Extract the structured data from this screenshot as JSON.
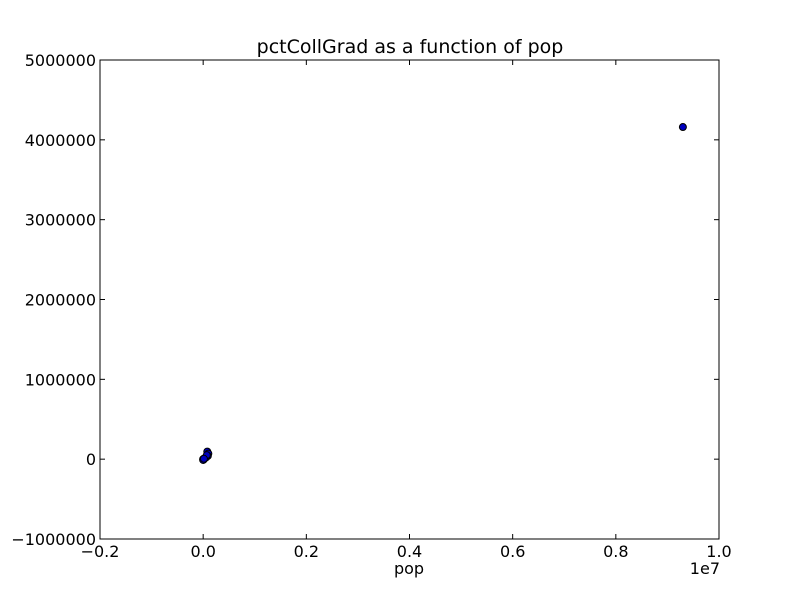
{
  "chart_data": {
    "type": "scatter",
    "title": "pctCollGrad as a function of pop",
    "xlabel": "pop",
    "ylabel": "",
    "x_offset_label": "1e7",
    "xlim": [
      -0.2,
      1.0
    ],
    "ylim": [
      -1000000,
      5000000
    ],
    "x_ticks": [
      -0.2,
      0.0,
      0.2,
      0.4,
      0.6,
      0.8,
      1.0
    ],
    "x_tick_labels": [
      "−0.2",
      "0.0",
      "0.2",
      "0.4",
      "0.6",
      "0.8",
      "1.0"
    ],
    "y_ticks": [
      -1000000,
      0,
      1000000,
      2000000,
      3000000,
      4000000,
      5000000
    ],
    "y_tick_labels": [
      "−1000000",
      "0",
      "1000000",
      "2000000",
      "3000000",
      "4000000",
      "5000000"
    ],
    "grid": false,
    "marker_color": "#0000bf",
    "marker_edge": "#000000",
    "points": [
      {
        "x": 0.93,
        "y": 4160000
      },
      {
        "x": 0.008,
        "y": 95000
      },
      {
        "x": 0.01,
        "y": 70000
      },
      {
        "x": 0.009,
        "y": 40000
      },
      {
        "x": 0.006,
        "y": 25000
      },
      {
        "x": 0.004,
        "y": 15000
      },
      {
        "x": 0.002,
        "y": 8000
      },
      {
        "x": 0.001,
        "y": 3000
      },
      {
        "x": 0.0,
        "y": 1000
      },
      {
        "x": 0.003,
        "y": 12000
      },
      {
        "x": 0.005,
        "y": 20000
      },
      {
        "x": 0.001,
        "y": -5000
      },
      {
        "x": 0.0,
        "y": -10000
      },
      {
        "x": 0.007,
        "y": 50000
      },
      {
        "x": 0.0015,
        "y": 5000
      }
    ]
  }
}
